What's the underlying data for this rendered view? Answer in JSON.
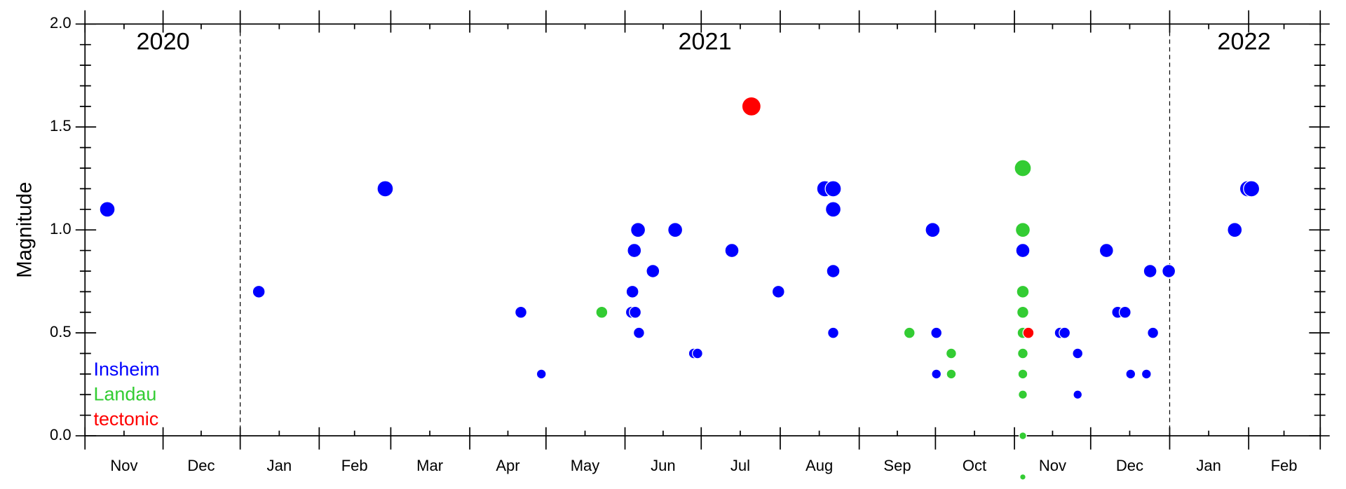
{
  "chart_data": {
    "type": "scatter",
    "ylabel": "Magnitude",
    "xlim": [
      2020.833,
      2022.162
    ],
    "ylim": [
      0,
      2
    ],
    "xticks": [
      2020.833,
      2020.917,
      2021.0,
      2021.085,
      2021.162,
      2021.247,
      2021.329,
      2021.414,
      2021.496,
      2021.581,
      2021.666,
      2021.748,
      2021.833,
      2021.915,
      2022.0,
      2022.085,
      2022.162
    ],
    "months": [
      {
        "value": 2020.875,
        "label": "Nov"
      },
      {
        "value": 2020.958,
        "label": "Dec"
      },
      {
        "value": 2021.042,
        "label": "Jan"
      },
      {
        "value": 2021.123,
        "label": "Feb"
      },
      {
        "value": 2021.204,
        "label": "Mar"
      },
      {
        "value": 2021.288,
        "label": "Apr"
      },
      {
        "value": 2021.371,
        "label": "May"
      },
      {
        "value": 2021.455,
        "label": "Jun"
      },
      {
        "value": 2021.538,
        "label": "Jul"
      },
      {
        "value": 2021.623,
        "label": "Aug"
      },
      {
        "value": 2021.707,
        "label": "Sep"
      },
      {
        "value": 2021.79,
        "label": "Oct"
      },
      {
        "value": 2021.874,
        "label": "Nov"
      },
      {
        "value": 2021.957,
        "label": "Dec"
      },
      {
        "value": 2022.042,
        "label": "Jan"
      },
      {
        "value": 2022.123,
        "label": "Feb"
      }
    ],
    "years": [
      {
        "value": 2020.917,
        "label": "2020"
      },
      {
        "value": 2021.5,
        "label": "2021"
      },
      {
        "value": 2022.08,
        "label": "2022"
      }
    ],
    "year_dividers": [
      2021.0,
      2022.0
    ],
    "yticks": [
      {
        "value": 0,
        "label": "0.0"
      },
      {
        "value": 0.5,
        "label": "0.5"
      },
      {
        "value": 1,
        "label": "1.0"
      },
      {
        "value": 1.5,
        "label": "1.5"
      },
      {
        "value": 2,
        "label": "2.0"
      }
    ],
    "yminor_ticks": [
      0.1,
      0.2,
      0.3,
      0.4,
      0.6,
      0.7,
      0.8,
      0.9,
      1.1,
      1.2,
      1.3,
      1.4,
      1.6,
      1.7,
      1.8,
      1.9
    ],
    "series": [
      {
        "name": "Insheim",
        "color": "#0000ff",
        "x": [
          2020.857,
          2021.156,
          2021.02,
          2021.302,
          2021.324,
          2021.421,
          2021.425,
          2021.422,
          2021.424,
          2021.428,
          2021.429,
          2021.444,
          2021.468,
          2021.488,
          2021.492,
          2021.529,
          2021.579,
          2021.629,
          2021.638,
          2021.638,
          2021.638,
          2021.638,
          2021.745,
          2021.749,
          2021.749,
          2021.842,
          2021.882,
          2021.887,
          2021.901,
          2021.901,
          2021.932,
          2021.944,
          2021.952,
          2021.958,
          2021.975,
          2021.979,
          2021.982,
          2021.999,
          2022.07,
          2022.084,
          2022.088
        ],
        "values": [
          1.1,
          1.2,
          0.7,
          0.6,
          0.3,
          0.6,
          0.6,
          0.7,
          0.9,
          1.0,
          0.5,
          0.8,
          1.0,
          0.4,
          0.4,
          0.9,
          0.7,
          1.2,
          1.2,
          1.1,
          0.8,
          0.5,
          1.0,
          0.5,
          0.3,
          0.9,
          0.5,
          0.5,
          0.4,
          0.2,
          0.9,
          0.6,
          0.6,
          0.3,
          0.3,
          0.8,
          0.5,
          0.8,
          1.0,
          1.2,
          1.2
        ]
      },
      {
        "name": "Landau",
        "color": "#33cc33",
        "x": [
          2021.389,
          2021.72,
          2021.765,
          2021.765,
          2021.842,
          2021.842,
          2021.842,
          2021.842,
          2021.842,
          2021.842,
          2021.842,
          2021.842,
          2021.842,
          2021.842
        ],
        "values": [
          0.6,
          0.5,
          0.4,
          0.3,
          1.3,
          1.0,
          0.7,
          0.6,
          0.5,
          0.4,
          0.3,
          0.2,
          0.0,
          -0.2
        ]
      },
      {
        "name": "tectonic",
        "color": "#ff0000",
        "x": [
          2021.55,
          2021.848
        ],
        "values": [
          1.6,
          0.5
        ]
      }
    ]
  }
}
